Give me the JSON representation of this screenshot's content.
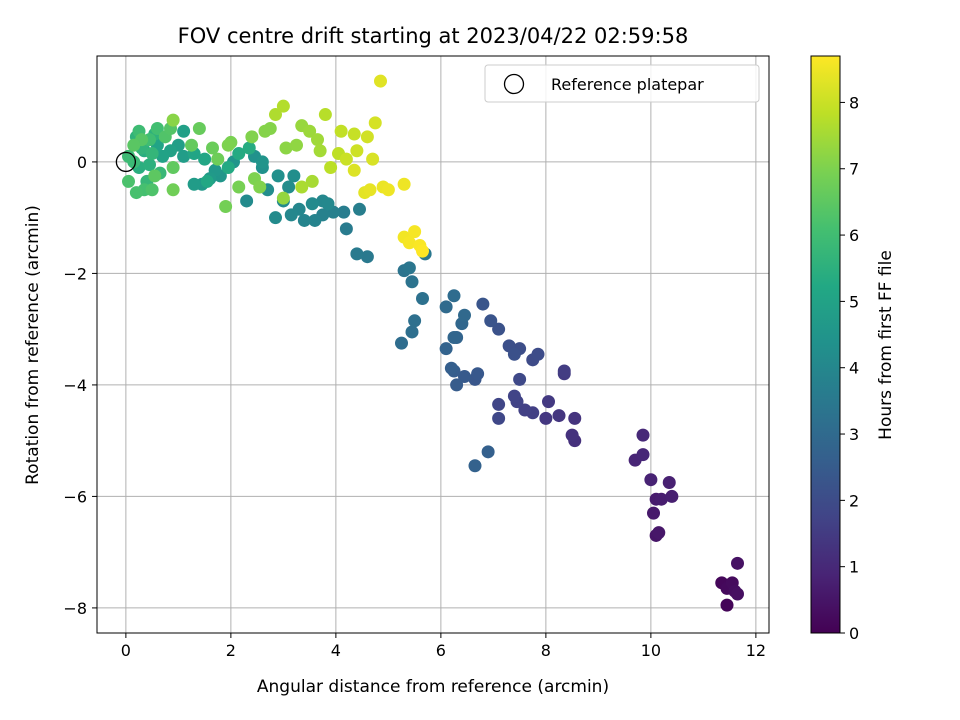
{
  "chart_data": {
    "type": "scatter",
    "title": "FOV centre drift starting at 2023/04/22 02:59:58",
    "xlabel": "Angular distance from reference (arcmin)",
    "ylabel": "Rotation from reference (arcmin)",
    "xlim": [
      -0.55,
      12.25
    ],
    "ylim": [
      -8.45,
      1.9
    ],
    "xticks": [
      0,
      2,
      4,
      6,
      8,
      10,
      12
    ],
    "yticks": [
      0,
      -2,
      -4,
      -6,
      -8
    ],
    "xtick_labels": [
      "0",
      "2",
      "4",
      "6",
      "8",
      "10",
      "12"
    ],
    "ytick_labels": [
      "0",
      "−2",
      "−4",
      "−6",
      "−8"
    ],
    "grid": true,
    "legend": {
      "position": "top-right",
      "entries": [
        {
          "label": "Reference platepar",
          "marker": "open-circle"
        }
      ]
    },
    "reference_point": {
      "x": 0,
      "y": 0
    },
    "colorbar": {
      "label": "Hours from first FF file",
      "colormap": "viridis",
      "range": [
        0,
        8.7
      ],
      "ticks": [
        0,
        1,
        2,
        3,
        4,
        5,
        6,
        7,
        8
      ],
      "tick_labels": [
        "0",
        "1",
        "2",
        "3",
        "4",
        "5",
        "6",
        "7",
        "8"
      ]
    },
    "points": [
      {
        "x": 11.45,
        "y": -7.95,
        "hours": 0.1
      },
      {
        "x": 11.35,
        "y": -7.55,
        "hours": 0.15
      },
      {
        "x": 11.45,
        "y": -7.65,
        "hours": 0.2
      },
      {
        "x": 11.55,
        "y": -7.55,
        "hours": 0.25
      },
      {
        "x": 11.6,
        "y": -7.7,
        "hours": 0.3
      },
      {
        "x": 11.65,
        "y": -7.75,
        "hours": 0.35
      },
      {
        "x": 11.65,
        "y": -7.2,
        "hours": 0.4
      },
      {
        "x": 10.1,
        "y": -6.7,
        "hours": 0.5
      },
      {
        "x": 10.15,
        "y": -6.65,
        "hours": 0.55
      },
      {
        "x": 10.05,
        "y": -6.3,
        "hours": 0.6
      },
      {
        "x": 10.1,
        "y": -6.05,
        "hours": 0.65
      },
      {
        "x": 10.2,
        "y": -6.05,
        "hours": 0.7
      },
      {
        "x": 10.4,
        "y": -6.0,
        "hours": 0.75
      },
      {
        "x": 10.35,
        "y": -5.75,
        "hours": 0.8
      },
      {
        "x": 10.0,
        "y": -5.7,
        "hours": 0.85
      },
      {
        "x": 9.7,
        "y": -5.35,
        "hours": 0.9
      },
      {
        "x": 9.85,
        "y": -5.25,
        "hours": 0.95
      },
      {
        "x": 9.85,
        "y": -4.9,
        "hours": 1.0
      },
      {
        "x": 8.55,
        "y": -5.0,
        "hours": 1.2
      },
      {
        "x": 8.5,
        "y": -4.9,
        "hours": 1.25
      },
      {
        "x": 8.55,
        "y": -4.6,
        "hours": 1.3
      },
      {
        "x": 8.25,
        "y": -4.55,
        "hours": 1.35
      },
      {
        "x": 8.0,
        "y": -4.6,
        "hours": 1.4
      },
      {
        "x": 8.05,
        "y": -4.3,
        "hours": 1.45
      },
      {
        "x": 8.35,
        "y": -3.8,
        "hours": 1.5
      },
      {
        "x": 8.35,
        "y": -3.75,
        "hours": 1.55
      },
      {
        "x": 7.75,
        "y": -4.5,
        "hours": 1.6
      },
      {
        "x": 7.6,
        "y": -4.45,
        "hours": 1.65
      },
      {
        "x": 7.45,
        "y": -4.3,
        "hours": 1.7
      },
      {
        "x": 7.4,
        "y": -4.2,
        "hours": 1.75
      },
      {
        "x": 7.1,
        "y": -4.35,
        "hours": 1.8
      },
      {
        "x": 7.1,
        "y": -4.6,
        "hours": 1.85
      },
      {
        "x": 7.5,
        "y": -3.9,
        "hours": 1.9
      },
      {
        "x": 7.75,
        "y": -3.55,
        "hours": 1.95
      },
      {
        "x": 7.85,
        "y": -3.45,
        "hours": 2.0
      },
      {
        "x": 7.5,
        "y": -3.35,
        "hours": 2.05
      },
      {
        "x": 7.3,
        "y": -3.3,
        "hours": 2.1
      },
      {
        "x": 7.4,
        "y": -3.45,
        "hours": 2.15
      },
      {
        "x": 7.1,
        "y": -3.0,
        "hours": 2.2
      },
      {
        "x": 6.95,
        "y": -2.85,
        "hours": 2.25
      },
      {
        "x": 6.8,
        "y": -2.55,
        "hours": 2.3
      },
      {
        "x": 6.65,
        "y": -3.9,
        "hours": 2.35
      },
      {
        "x": 6.7,
        "y": -3.8,
        "hours": 2.4
      },
      {
        "x": 6.45,
        "y": -3.85,
        "hours": 2.45
      },
      {
        "x": 6.3,
        "y": -4.0,
        "hours": 2.5
      },
      {
        "x": 6.25,
        "y": -3.75,
        "hours": 2.55
      },
      {
        "x": 6.2,
        "y": -3.7,
        "hours": 2.6
      },
      {
        "x": 6.9,
        "y": -5.2,
        "hours": 2.65
      },
      {
        "x": 6.65,
        "y": -5.45,
        "hours": 2.7
      },
      {
        "x": 6.1,
        "y": -3.35,
        "hours": 2.75
      },
      {
        "x": 6.3,
        "y": -3.15,
        "hours": 2.8
      },
      {
        "x": 6.25,
        "y": -3.15,
        "hours": 2.85
      },
      {
        "x": 6.4,
        "y": -2.9,
        "hours": 2.9
      },
      {
        "x": 6.45,
        "y": -2.75,
        "hours": 2.95
      },
      {
        "x": 6.1,
        "y": -2.6,
        "hours": 3.0
      },
      {
        "x": 6.25,
        "y": -2.4,
        "hours": 3.05
      },
      {
        "x": 5.25,
        "y": -3.25,
        "hours": 3.1
      },
      {
        "x": 5.45,
        "y": -3.05,
        "hours": 3.15
      },
      {
        "x": 5.5,
        "y": -2.85,
        "hours": 3.2
      },
      {
        "x": 5.65,
        "y": -2.45,
        "hours": 3.25
      },
      {
        "x": 5.45,
        "y": -2.15,
        "hours": 3.3
      },
      {
        "x": 5.3,
        "y": -1.95,
        "hours": 3.35
      },
      {
        "x": 5.4,
        "y": -1.9,
        "hours": 3.4
      },
      {
        "x": 5.7,
        "y": -1.65,
        "hours": 3.45
      },
      {
        "x": 4.6,
        "y": -1.7,
        "hours": 3.5
      },
      {
        "x": 4.4,
        "y": -1.65,
        "hours": 3.55
      },
      {
        "x": 4.2,
        "y": -1.2,
        "hours": 3.6
      },
      {
        "x": 4.15,
        "y": -0.9,
        "hours": 3.65
      },
      {
        "x": 4.45,
        "y": -0.85,
        "hours": 3.7
      },
      {
        "x": 3.95,
        "y": -0.9,
        "hours": 3.75
      },
      {
        "x": 3.75,
        "y": -0.95,
        "hours": 3.8
      },
      {
        "x": 3.6,
        "y": -1.05,
        "hours": 3.85
      },
      {
        "x": 3.4,
        "y": -1.05,
        "hours": 3.9
      },
      {
        "x": 3.3,
        "y": -0.85,
        "hours": 3.95
      },
      {
        "x": 3.15,
        "y": -0.95,
        "hours": 4.0
      },
      {
        "x": 3.75,
        "y": -0.7,
        "hours": 4.0
      },
      {
        "x": 3.85,
        "y": -0.75,
        "hours": 4.05
      },
      {
        "x": 3.55,
        "y": -0.75,
        "hours": 4.1
      },
      {
        "x": 3.0,
        "y": -0.7,
        "hours": 4.1
      },
      {
        "x": 2.85,
        "y": -1.0,
        "hours": 4.15
      },
      {
        "x": 2.3,
        "y": -0.7,
        "hours": 4.15
      },
      {
        "x": 2.7,
        "y": -0.5,
        "hours": 4.2
      },
      {
        "x": 3.1,
        "y": -0.45,
        "hours": 4.2
      },
      {
        "x": 3.2,
        "y": -0.25,
        "hours": 4.25
      },
      {
        "x": 2.9,
        "y": -0.25,
        "hours": 4.3
      },
      {
        "x": 2.6,
        "y": -0.1,
        "hours": 4.35
      },
      {
        "x": 2.45,
        "y": 0.1,
        "hours": 4.4
      },
      {
        "x": 2.6,
        "y": 0.0,
        "hours": 4.45
      },
      {
        "x": 2.05,
        "y": 0.0,
        "hours": 4.5
      },
      {
        "x": 1.8,
        "y": -0.25,
        "hours": 4.55
      },
      {
        "x": 1.7,
        "y": -0.15,
        "hours": 4.6
      },
      {
        "x": 1.45,
        "y": -0.4,
        "hours": 4.65
      },
      {
        "x": 1.6,
        "y": -0.3,
        "hours": 4.7
      },
      {
        "x": 1.3,
        "y": -0.4,
        "hours": 4.75
      },
      {
        "x": 1.1,
        "y": 0.1,
        "hours": 4.8
      },
      {
        "x": 1.0,
        "y": 0.3,
        "hours": 4.85
      },
      {
        "x": 1.1,
        "y": 0.55,
        "hours": 4.9
      },
      {
        "x": 0.85,
        "y": 0.2,
        "hours": 4.95
      },
      {
        "x": 0.7,
        "y": 0.1,
        "hours": 5.0
      },
      {
        "x": 0.6,
        "y": 0.3,
        "hours": 5.05
      },
      {
        "x": 1.3,
        "y": 0.15,
        "hours": 5.1
      },
      {
        "x": 1.5,
        "y": 0.05,
        "hours": 5.15
      },
      {
        "x": 1.55,
        "y": -0.35,
        "hours": 5.2
      },
      {
        "x": 1.95,
        "y": -0.1,
        "hours": 5.25
      },
      {
        "x": 2.15,
        "y": 0.15,
        "hours": 5.3
      },
      {
        "x": 2.35,
        "y": 0.25,
        "hours": 5.35
      },
      {
        "x": 0.35,
        "y": 0.2,
        "hours": 5.4
      },
      {
        "x": 0.25,
        "y": -0.1,
        "hours": 5.45
      },
      {
        "x": 0.45,
        "y": -0.05,
        "hours": 5.5
      },
      {
        "x": 0.55,
        "y": 0.5,
        "hours": 5.55
      },
      {
        "x": 0.2,
        "y": 0.45,
        "hours": 5.6
      },
      {
        "x": 0.3,
        "y": 0.25,
        "hours": 5.65
      },
      {
        "x": 0.5,
        "y": 0.15,
        "hours": 5.7
      },
      {
        "x": 0.4,
        "y": -0.35,
        "hours": 5.75
      },
      {
        "x": 0.65,
        "y": -0.2,
        "hours": 5.8
      },
      {
        "x": 0.15,
        "y": 0.0,
        "hours": 5.85
      },
      {
        "x": 0.05,
        "y": 0.1,
        "hours": 5.9
      },
      {
        "x": 0.25,
        "y": 0.55,
        "hours": 5.95
      },
      {
        "x": 0.45,
        "y": 0.4,
        "hours": 6.0
      },
      {
        "x": 0.6,
        "y": 0.6,
        "hours": 6.05
      },
      {
        "x": 0.35,
        "y": -0.5,
        "hours": 6.1
      },
      {
        "x": 0.2,
        "y": -0.55,
        "hours": 6.15
      },
      {
        "x": 0.05,
        "y": -0.35,
        "hours": 6.2
      },
      {
        "x": 0.5,
        "y": -0.5,
        "hours": 6.25
      },
      {
        "x": 0.75,
        "y": 0.45,
        "hours": 6.3
      },
      {
        "x": 0.85,
        "y": 0.6,
        "hours": 6.35
      },
      {
        "x": 0.3,
        "y": 0.4,
        "hours": 6.4
      },
      {
        "x": 0.15,
        "y": 0.3,
        "hours": 6.45
      },
      {
        "x": 0.55,
        "y": -0.25,
        "hours": 6.5
      },
      {
        "x": 0.9,
        "y": -0.1,
        "hours": 6.55
      },
      {
        "x": 1.25,
        "y": 0.3,
        "hours": 6.6
      },
      {
        "x": 1.4,
        "y": 0.6,
        "hours": 6.65
      },
      {
        "x": 1.65,
        "y": 0.25,
        "hours": 6.7
      },
      {
        "x": 1.75,
        "y": 0.05,
        "hours": 6.75
      },
      {
        "x": 0.9,
        "y": -0.5,
        "hours": 6.8
      },
      {
        "x": 1.9,
        "y": -0.8,
        "hours": 6.85
      },
      {
        "x": 2.15,
        "y": -0.45,
        "hours": 6.9
      },
      {
        "x": 2.0,
        "y": 0.35,
        "hours": 6.95
      },
      {
        "x": 1.95,
        "y": 0.3,
        "hours": 7.0
      },
      {
        "x": 2.45,
        "y": -0.3,
        "hours": 7.0
      },
      {
        "x": 2.55,
        "y": -0.45,
        "hours": 7.05
      },
      {
        "x": 2.4,
        "y": 0.45,
        "hours": 7.05
      },
      {
        "x": 2.65,
        "y": 0.55,
        "hours": 7.1
      },
      {
        "x": 2.75,
        "y": 0.6,
        "hours": 7.1
      },
      {
        "x": 0.9,
        "y": 0.75,
        "hours": 7.15
      },
      {
        "x": 3.05,
        "y": 0.25,
        "hours": 7.2
      },
      {
        "x": 3.25,
        "y": 0.3,
        "hours": 7.25
      },
      {
        "x": 3.0,
        "y": -0.65,
        "hours": 7.3
      },
      {
        "x": 3.35,
        "y": 0.65,
        "hours": 7.35
      },
      {
        "x": 3.5,
        "y": 0.55,
        "hours": 7.4
      },
      {
        "x": 3.65,
        "y": 0.4,
        "hours": 7.45
      },
      {
        "x": 3.7,
        "y": 0.2,
        "hours": 7.5
      },
      {
        "x": 3.55,
        "y": -0.35,
        "hours": 7.55
      },
      {
        "x": 3.35,
        "y": -0.45,
        "hours": 7.6
      },
      {
        "x": 2.85,
        "y": 0.85,
        "hours": 7.65
      },
      {
        "x": 3.0,
        "y": 1.0,
        "hours": 7.7
      },
      {
        "x": 3.8,
        "y": 0.85,
        "hours": 7.75
      },
      {
        "x": 3.9,
        "y": -0.1,
        "hours": 7.8
      },
      {
        "x": 4.05,
        "y": 0.15,
        "hours": 7.85
      },
      {
        "x": 4.1,
        "y": 0.55,
        "hours": 7.9
      },
      {
        "x": 4.35,
        "y": 0.5,
        "hours": 7.95
      },
      {
        "x": 4.2,
        "y": 0.05,
        "hours": 8.0
      },
      {
        "x": 4.4,
        "y": 0.2,
        "hours": 8.05
      },
      {
        "x": 4.6,
        "y": 0.45,
        "hours": 8.1
      },
      {
        "x": 4.75,
        "y": 0.7,
        "hours": 8.15
      },
      {
        "x": 4.7,
        "y": 0.05,
        "hours": 8.2
      },
      {
        "x": 4.35,
        "y": -0.15,
        "hours": 8.25
      },
      {
        "x": 4.85,
        "y": 1.45,
        "hours": 8.3
      },
      {
        "x": 4.55,
        "y": -0.55,
        "hours": 8.35
      },
      {
        "x": 4.65,
        "y": -0.5,
        "hours": 8.4
      },
      {
        "x": 4.9,
        "y": -0.45,
        "hours": 8.45
      },
      {
        "x": 5.0,
        "y": -0.5,
        "hours": 8.5
      },
      {
        "x": 5.3,
        "y": -0.4,
        "hours": 8.5
      },
      {
        "x": 5.3,
        "y": -1.35,
        "hours": 8.55
      },
      {
        "x": 5.4,
        "y": -1.45,
        "hours": 8.6
      },
      {
        "x": 5.5,
        "y": -1.25,
        "hours": 8.6
      },
      {
        "x": 5.6,
        "y": -1.5,
        "hours": 8.65
      },
      {
        "x": 5.65,
        "y": -1.6,
        "hours": 8.7
      }
    ]
  }
}
